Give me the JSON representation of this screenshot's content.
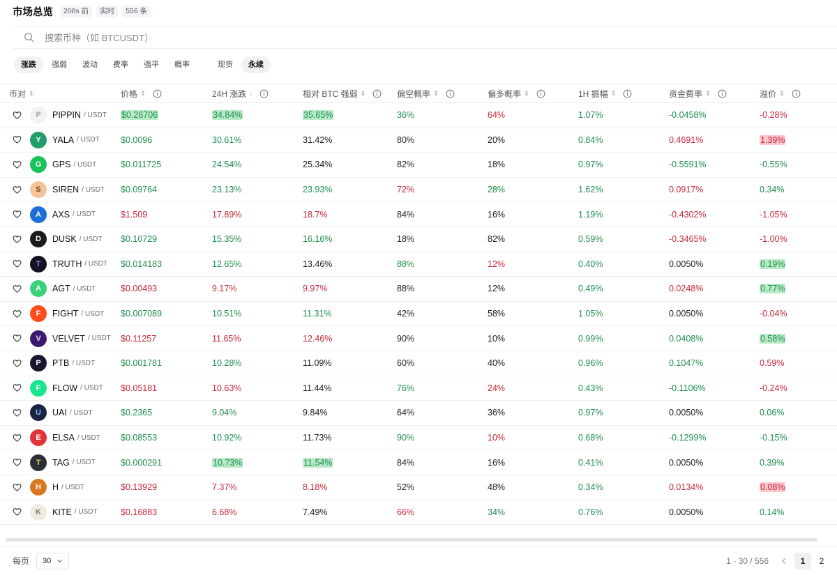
{
  "header": {
    "title": "市场总览",
    "badges": [
      "208s 前",
      "实时",
      "556 条"
    ]
  },
  "search": {
    "placeholder": "搜索币种（如 BTCUSDT）"
  },
  "filters": {
    "metrics": [
      {
        "label": "涨跌",
        "active": true
      },
      {
        "label": "强弱",
        "active": false
      },
      {
        "label": "波动",
        "active": false
      },
      {
        "label": "费率",
        "active": false
      },
      {
        "label": "强平",
        "active": false
      },
      {
        "label": "概率",
        "active": false
      }
    ],
    "markets": [
      {
        "label": "现货",
        "active": false
      },
      {
        "label": "永续",
        "active": true
      }
    ]
  },
  "table": {
    "columns": [
      "币对",
      "价格",
      "24H 涨跌",
      "相对 BTC 强弱",
      "偏空概率",
      "偏多概率",
      "1H 振幅",
      "资金费率",
      "溢价"
    ],
    "quote": "/ USDT",
    "rows": [
      {
        "sym": "PIPPIN",
        "logo": "#f2f2f2",
        "logo_fg": "#9aa",
        "price": "$0.26706",
        "chg": "34.84%",
        "btc": "35.65%",
        "short": "36%",
        "long": "64%",
        "amp": "1.07%",
        "fund": "-0.0458%",
        "prem": "-0.28%",
        "sty": [
          "u",
          "u",
          "u",
          "u",
          "d",
          "u",
          "u",
          "d"
        ],
        "hl": [
          "u",
          "u",
          "u",
          "",
          "",
          "",
          "",
          ""
        ]
      },
      {
        "sym": "YALA",
        "logo": "#1f9d6b",
        "logo_fg": "#fff",
        "price": "$0.0096",
        "chg": "30.61%",
        "btc": "31.42%",
        "short": "80%",
        "long": "20%",
        "amp": "0.84%",
        "fund": "0.4691%",
        "prem": "1.39%",
        "sty": [
          "u",
          "u",
          "n",
          "n",
          "n",
          "u",
          "d",
          "d"
        ],
        "hl": [
          "",
          "",
          "",
          "",
          "",
          "",
          "",
          "d"
        ]
      },
      {
        "sym": "GPS",
        "logo": "#17c25a",
        "logo_fg": "#fff",
        "price": "$0.011725",
        "chg": "24.54%",
        "btc": "25.34%",
        "short": "82%",
        "long": "18%",
        "amp": "0.97%",
        "fund": "-0.5591%",
        "prem": "-0.55%",
        "sty": [
          "u",
          "u",
          "n",
          "n",
          "n",
          "u",
          "u",
          "u"
        ],
        "hl": [
          "",
          "",
          "",
          "",
          "",
          "",
          "",
          ""
        ]
      },
      {
        "sym": "SIREN",
        "logo": "#f4c39a",
        "logo_fg": "#7a3b1c",
        "price": "$0.09764",
        "chg": "23.13%",
        "btc": "23.93%",
        "short": "72%",
        "long": "28%",
        "amp": "1.62%",
        "fund": "0.0917%",
        "prem": "0.34%",
        "sty": [
          "u",
          "u",
          "u",
          "d",
          "u",
          "u",
          "d",
          "u"
        ],
        "hl": [
          "",
          "",
          "",
          "",
          "",
          "",
          "",
          ""
        ]
      },
      {
        "sym": "AXS",
        "logo": "#1c6fd8",
        "logo_fg": "#fff",
        "price": "$1.509",
        "chg": "17.89%",
        "btc": "18.7%",
        "short": "84%",
        "long": "16%",
        "amp": "1.19%",
        "fund": "-0.4302%",
        "prem": "-1.05%",
        "sty": [
          "d",
          "d",
          "d",
          "n",
          "n",
          "u",
          "d",
          "d"
        ],
        "hl": [
          "",
          "",
          "",
          "",
          "",
          "",
          "",
          ""
        ]
      },
      {
        "sym": "DUSK",
        "logo": "#1b1b1b",
        "logo_fg": "#fff",
        "price": "$0.10729",
        "chg": "15.35%",
        "btc": "16.16%",
        "short": "18%",
        "long": "82%",
        "amp": "0.59%",
        "fund": "-0.3465%",
        "prem": "-1.00%",
        "sty": [
          "u",
          "u",
          "u",
          "n",
          "n",
          "u",
          "d",
          "d"
        ],
        "hl": [
          "",
          "",
          "",
          "",
          "",
          "",
          "",
          ""
        ]
      },
      {
        "sym": "TRUTH",
        "logo": "#14121f",
        "logo_fg": "#8f7bff",
        "price": "$0.014183",
        "chg": "12.65%",
        "btc": "13.46%",
        "short": "88%",
        "long": "12%",
        "amp": "0.40%",
        "fund": "0.0050%",
        "prem": "0.19%",
        "sty": [
          "u",
          "u",
          "n",
          "u",
          "d",
          "u",
          "n",
          "u"
        ],
        "hl": [
          "",
          "",
          "",
          "",
          "",
          "",
          "",
          "u"
        ]
      },
      {
        "sym": "AGT",
        "logo": "#3bd07a",
        "logo_fg": "#fff",
        "price": "$0.00493",
        "chg": "9.17%",
        "btc": "9.97%",
        "short": "88%",
        "long": "12%",
        "amp": "0.49%",
        "fund": "0.0248%",
        "prem": "0.77%",
        "sty": [
          "d",
          "d",
          "d",
          "n",
          "n",
          "u",
          "d",
          "u"
        ],
        "hl": [
          "",
          "",
          "",
          "",
          "",
          "",
          "",
          "u"
        ]
      },
      {
        "sym": "FIGHT",
        "logo": "#ff4a1c",
        "logo_fg": "#fff",
        "price": "$0.007089",
        "chg": "10.51%",
        "btc": "11.31%",
        "short": "42%",
        "long": "58%",
        "amp": "1.05%",
        "fund": "0.0050%",
        "prem": "-0.04%",
        "sty": [
          "u",
          "u",
          "u",
          "n",
          "n",
          "u",
          "n",
          "d"
        ],
        "hl": [
          "",
          "",
          "",
          "",
          "",
          "",
          "",
          ""
        ]
      },
      {
        "sym": "VELVET",
        "logo": "#3b1a6e",
        "logo_fg": "#e7d8ff",
        "price": "$0.11257",
        "chg": "11.65%",
        "btc": "12.46%",
        "short": "90%",
        "long": "10%",
        "amp": "0.99%",
        "fund": "0.0408%",
        "prem": "0.58%",
        "sty": [
          "d",
          "d",
          "d",
          "n",
          "n",
          "u",
          "u",
          "u"
        ],
        "hl": [
          "",
          "",
          "",
          "",
          "",
          "",
          "",
          "u"
        ]
      },
      {
        "sym": "PTB",
        "logo": "#1a1530",
        "logo_fg": "#fff",
        "price": "$0.001781",
        "chg": "10.28%",
        "btc": "11.09%",
        "short": "60%",
        "long": "40%",
        "amp": "0.96%",
        "fund": "0.1047%",
        "prem": "0.59%",
        "sty": [
          "u",
          "u",
          "n",
          "n",
          "n",
          "u",
          "u",
          "d"
        ],
        "hl": [
          "",
          "",
          "",
          "",
          "",
          "",
          "",
          ""
        ]
      },
      {
        "sym": "FLOW",
        "logo": "#19e58b",
        "logo_fg": "#fff",
        "price": "$0.05181",
        "chg": "10.63%",
        "btc": "11.44%",
        "short": "76%",
        "long": "24%",
        "amp": "0.43%",
        "fund": "-0.1106%",
        "prem": "-0.24%",
        "sty": [
          "d",
          "d",
          "n",
          "u",
          "d",
          "u",
          "u",
          "d"
        ],
        "hl": [
          "",
          "",
          "",
          "",
          "",
          "",
          "",
          ""
        ]
      },
      {
        "sym": "UAI",
        "logo": "#1a2340",
        "logo_fg": "#7fb3ff",
        "price": "$0.2365",
        "chg": "9.04%",
        "btc": "9.84%",
        "short": "64%",
        "long": "36%",
        "amp": "0.97%",
        "fund": "0.0050%",
        "prem": "0.06%",
        "sty": [
          "u",
          "u",
          "n",
          "n",
          "n",
          "u",
          "n",
          "u"
        ],
        "hl": [
          "",
          "",
          "",
          "",
          "",
          "",
          "",
          ""
        ]
      },
      {
        "sym": "ELSA",
        "logo": "#e2343b",
        "logo_fg": "#fff",
        "price": "$0.08553",
        "chg": "10.92%",
        "btc": "11.73%",
        "short": "90%",
        "long": "10%",
        "amp": "0.68%",
        "fund": "-0.1299%",
        "prem": "-0.15%",
        "sty": [
          "u",
          "u",
          "n",
          "u",
          "d",
          "u",
          "u",
          "u"
        ],
        "hl": [
          "",
          "",
          "",
          "",
          "",
          "",
          "",
          ""
        ]
      },
      {
        "sym": "TAG",
        "logo": "#2a2f3a",
        "logo_fg": "#f2c94c",
        "price": "$0.000291",
        "chg": "10.73%",
        "btc": "11.54%",
        "short": "84%",
        "long": "16%",
        "amp": "0.41%",
        "fund": "0.0050%",
        "prem": "0.39%",
        "sty": [
          "u",
          "u",
          "u",
          "n",
          "n",
          "u",
          "n",
          "u"
        ],
        "hl": [
          "",
          "u",
          "u",
          "",
          "",
          "",
          "",
          ""
        ]
      },
      {
        "sym": "H",
        "logo": "#d9781f",
        "logo_fg": "#fff",
        "price": "$0.13929",
        "chg": "7.37%",
        "btc": "8.18%",
        "short": "52%",
        "long": "48%",
        "amp": "0.34%",
        "fund": "0.0134%",
        "prem": "0.08%",
        "sty": [
          "d",
          "d",
          "d",
          "n",
          "n",
          "u",
          "d",
          "d"
        ],
        "hl": [
          "",
          "",
          "",
          "",
          "",
          "",
          "",
          "d"
        ]
      },
      {
        "sym": "KITE",
        "logo": "#efece4",
        "logo_fg": "#8a7a5c",
        "price": "$0.16883",
        "chg": "6.68%",
        "btc": "7.49%",
        "short": "66%",
        "long": "34%",
        "amp": "0.76%",
        "fund": "0.0050%",
        "prem": "0.14%",
        "sty": [
          "d",
          "d",
          "n",
          "d",
          "u",
          "u",
          "n",
          "u"
        ],
        "hl": [
          "",
          "",
          "",
          "",
          "",
          "",
          "",
          ""
        ]
      }
    ]
  },
  "footer": {
    "per_page_label": "每页",
    "per_page_value": "30",
    "range": "1 - 30 / 556",
    "pages": [
      "1",
      "2"
    ]
  }
}
